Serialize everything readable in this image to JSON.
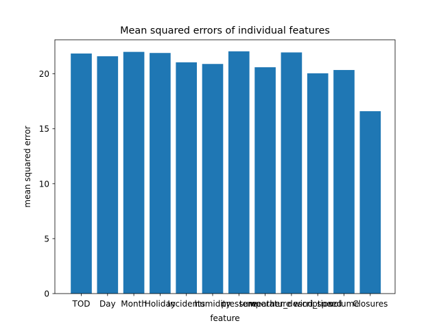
{
  "chart_data": {
    "type": "bar",
    "title": "Mean squared errors of individual features",
    "xlabel": "feature",
    "ylabel": "mean squared error",
    "categories": [
      "TOD",
      "Day",
      "Month",
      "Holiday",
      "Incidents",
      "humidity",
      "pressure",
      "temperature",
      "weather_description",
      "wind_speed",
      "volume",
      "Closures"
    ],
    "values": [
      21.85,
      21.6,
      22.0,
      21.9,
      21.05,
      20.9,
      22.05,
      20.6,
      21.95,
      20.05,
      20.35,
      16.6
    ],
    "ylim": [
      0,
      23.1
    ],
    "yticks": [
      0,
      5,
      10,
      15,
      20
    ],
    "grid": false,
    "legend": "none",
    "bar_color": "#1f77b4"
  }
}
